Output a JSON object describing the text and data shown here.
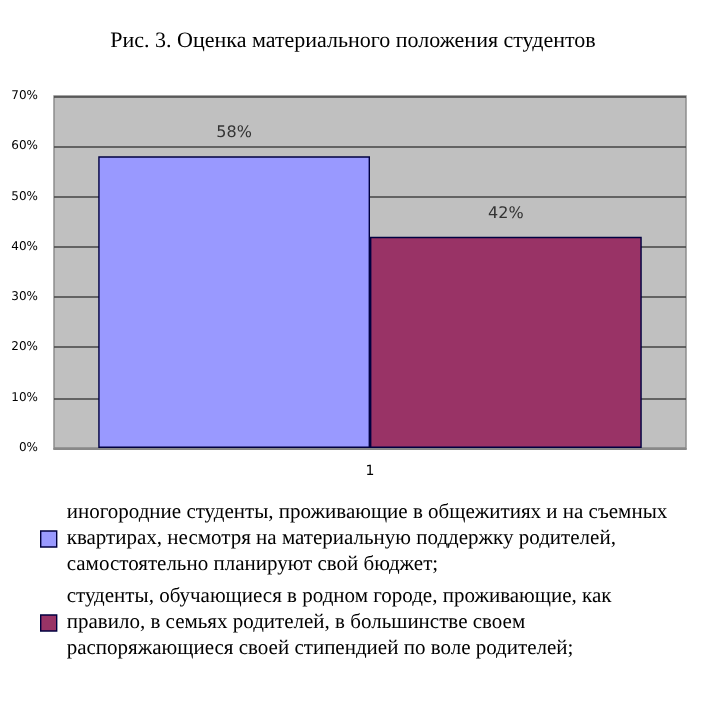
{
  "chart_data": {
    "type": "bar",
    "title": "Рис. 3. Оценка материального положения студентов",
    "categories": [
      "1"
    ],
    "series": [
      {
        "name": "иногородние студенты, проживающие в общежитиях и на съемных квартирах, несмотря на материальную поддержку родителей, самостоятельно планируют свой бюджет;",
        "color": "#9999ff",
        "values": [
          58
        ],
        "value_labels": [
          "58%"
        ]
      },
      {
        "name": "студенты, обучающиеся в родном городе, проживающие, как правило, в семьях родителей, в большинстве своем распоряжающиеся своей стипендией по воле родителей;",
        "color": "#993366",
        "values": [
          42
        ],
        "value_labels": [
          "42%"
        ]
      }
    ],
    "ylim": [
      0,
      70
    ],
    "yticks": [
      {
        "value": 0,
        "label": "0%"
      },
      {
        "value": 10,
        "label": "10%"
      },
      {
        "value": 20,
        "label": "20%"
      },
      {
        "value": 30,
        "label": "30%"
      },
      {
        "value": 40,
        "label": "40%"
      },
      {
        "value": 50,
        "label": "50%"
      },
      {
        "value": 60,
        "label": "60%"
      },
      {
        "value": 70,
        "label": "70%"
      }
    ],
    "grid": "y",
    "legend": "bottom"
  }
}
